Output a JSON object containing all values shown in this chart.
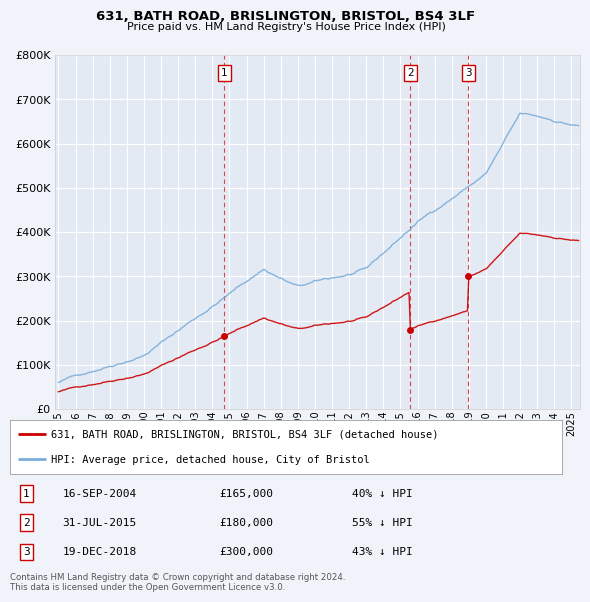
{
  "title": "631, BATH ROAD, BRISLINGTON, BRISTOL, BS4 3LF",
  "subtitle": "Price paid vs. HM Land Registry's House Price Index (HPI)",
  "legend_property": "631, BATH ROAD, BRISLINGTON, BRISTOL, BS4 3LF (detached house)",
  "legend_hpi": "HPI: Average price, detached house, City of Bristol",
  "footnote": "Contains HM Land Registry data © Crown copyright and database right 2024.\nThis data is licensed under the Open Government Licence v3.0.",
  "transactions": [
    {
      "num": 1,
      "date": "16-SEP-2004",
      "price": 165000,
      "hpi_pct": "40% ↓ HPI",
      "year": 2004.71
    },
    {
      "num": 2,
      "date": "31-JUL-2015",
      "price": 180000,
      "hpi_pct": "55% ↓ HPI",
      "year": 2015.58
    },
    {
      "num": 3,
      "date": "19-DEC-2018",
      "price": 300000,
      "hpi_pct": "43% ↓ HPI",
      "year": 2018.96
    }
  ],
  "property_line_color": "#cc0000",
  "hpi_line_color": "#7aadda",
  "vline_color": "#cc0000",
  "marker_color": "#cc0000",
  "background_color": "#f0f4fa",
  "plot_bg_color": "#e4eaf4",
  "grid_color": "#ffffff",
  "ylim": [
    0,
    800000
  ],
  "xlim_start": 1995.0,
  "xlim_end": 2025.5,
  "ytick_values": [
    0,
    100000,
    200000,
    300000,
    400000,
    500000,
    600000,
    700000,
    800000
  ],
  "xtick_years": [
    1995,
    1996,
    1997,
    1998,
    1999,
    2000,
    2001,
    2002,
    2003,
    2004,
    2005,
    2006,
    2007,
    2008,
    2009,
    2010,
    2011,
    2012,
    2013,
    2014,
    2015,
    2016,
    2017,
    2018,
    2019,
    2020,
    2021,
    2022,
    2023,
    2024,
    2025
  ]
}
